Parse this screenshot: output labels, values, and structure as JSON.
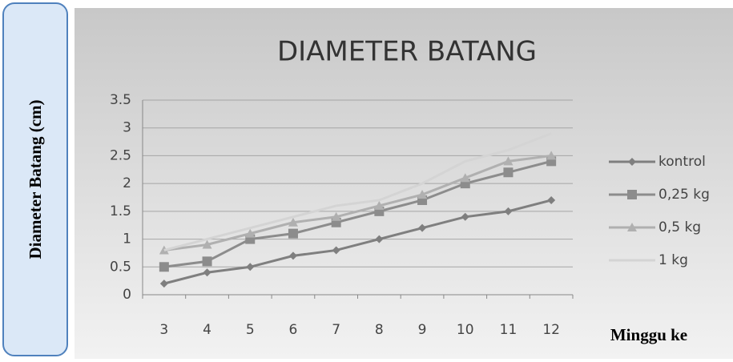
{
  "chart_data": {
    "type": "line",
    "title": "DIAMETER BATANG",
    "ylabel": "Diameter Batang (cm)",
    "xlabel": "Minggu ke",
    "categories": [
      "3",
      "4",
      "5",
      "6",
      "7",
      "8",
      "9",
      "10",
      "11",
      "12"
    ],
    "series": [
      {
        "name": "kontrol",
        "color": "#7f7f7f",
        "marker": "diamond",
        "values": [
          0.2,
          0.4,
          0.5,
          0.7,
          0.8,
          1.0,
          1.2,
          1.4,
          1.5,
          1.7
        ]
      },
      {
        "name": "0,25 kg",
        "color": "#8c8c8c",
        "marker": "square",
        "values": [
          0.5,
          0.6,
          1.0,
          1.1,
          1.3,
          1.5,
          1.7,
          2.0,
          2.2,
          2.4
        ]
      },
      {
        "name": "0,5 kg",
        "color": "#b0b0b0",
        "marker": "triangle",
        "values": [
          0.8,
          0.9,
          1.1,
          1.3,
          1.4,
          1.6,
          1.8,
          2.1,
          2.4,
          2.5
        ]
      },
      {
        "name": "1 kg",
        "color": "#d4d4d4",
        "marker": "none",
        "values": [
          0.8,
          1.0,
          1.2,
          1.4,
          1.6,
          1.7,
          2.0,
          2.4,
          2.6,
          2.9
        ]
      }
    ],
    "ylim": [
      0,
      3.5
    ],
    "yticks": [
      0,
      0.5,
      1,
      1.5,
      2,
      2.5,
      3,
      3.5
    ],
    "grid": true,
    "legend": "right"
  }
}
